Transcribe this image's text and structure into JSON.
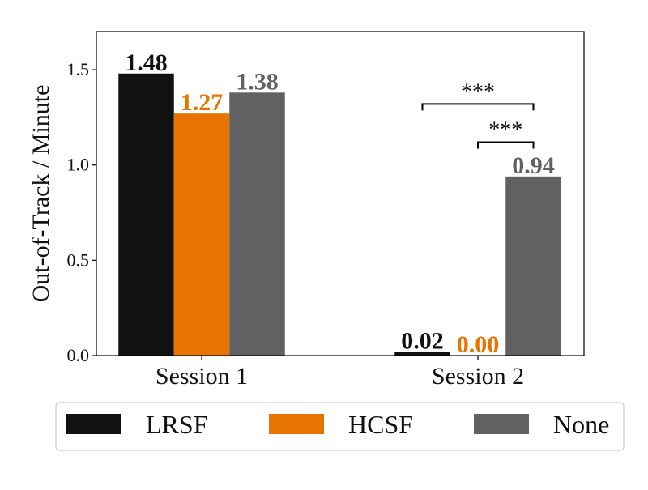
{
  "chart_data": {
    "type": "bar",
    "title": "",
    "xlabel": "",
    "ylabel": "Out-of-Track / Minute",
    "categories": [
      "Session 1",
      "Session 2"
    ],
    "series": [
      {
        "name": "LRSF",
        "color": "#111111",
        "values": [
          1.48,
          0.02
        ],
        "labels": [
          "1.48",
          "0.02"
        ]
      },
      {
        "name": "HCSF",
        "color": "#e87400",
        "values": [
          1.27,
          0.0
        ],
        "labels": [
          "1.27",
          "0.00"
        ]
      },
      {
        "name": "None",
        "color": "#616161",
        "values": [
          1.38,
          0.94
        ],
        "labels": [
          "1.38",
          "0.94"
        ]
      }
    ],
    "ylim": [
      0,
      1.7
    ],
    "yticks": [
      0.0,
      0.5,
      1.0,
      1.5
    ],
    "ytick_labels": [
      "0.0",
      "0.5",
      "1.0",
      "1.5"
    ],
    "grid": false,
    "legend_position": "bottom",
    "significance": [
      {
        "category": "Session 2",
        "from_series": 0,
        "to_series": 2,
        "label": "***",
        "level": 1.32
      },
      {
        "category": "Session 2",
        "from_series": 1,
        "to_series": 2,
        "label": "***",
        "level": 1.12
      }
    ]
  }
}
